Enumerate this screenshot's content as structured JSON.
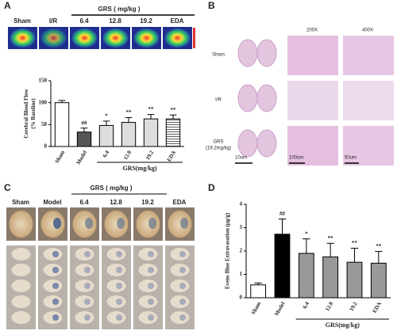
{
  "panel_labels": [
    "A",
    "B",
    "C",
    "D"
  ],
  "panel_a": {
    "group_label": "GRS ( mg/kg )",
    "image_labels": [
      "Sham",
      "I/R",
      "6.4",
      "12.8",
      "19.2",
      "EDA"
    ]
  },
  "panel_b": {
    "columns": [
      "200X",
      "400X"
    ],
    "rows": [
      [
        "Sham"
      ],
      [
        "I/R"
      ],
      [
        "GRS",
        "(19.2mg/kg)"
      ]
    ],
    "scale_labels": [
      "10um",
      "100um",
      "50um"
    ]
  },
  "panel_c": {
    "group_label": "GRS ( mg/kg )",
    "image_labels": [
      "Sham",
      "Model",
      "6.4",
      "12.8",
      "19.2",
      "EDA"
    ]
  },
  "chart_data": [
    {
      "type": "bar",
      "ylabel": [
        "Cerebral Blood Flow",
        "(% Baseline)"
      ],
      "xlabel": "GRS(mg/kg)",
      "categories": [
        "Sham",
        "Model",
        "6.4",
        "12.8",
        "19.2",
        "EDA"
      ],
      "values": [
        100,
        33,
        48,
        55,
        63,
        63
      ],
      "errors": [
        5,
        9,
        10,
        11,
        10,
        9
      ],
      "colors": [
        "#ffffff",
        "#555555",
        "#dddddd",
        "#dddddd",
        "#dddddd",
        "#ffffff"
      ],
      "hatch": [
        false,
        false,
        false,
        false,
        false,
        true
      ],
      "annotations": [
        null,
        "##",
        "*",
        "**",
        "**",
        "**"
      ],
      "ylim": [
        0,
        150
      ],
      "yticks": [
        0,
        50,
        100,
        150
      ]
    },
    {
      "type": "bar",
      "ylabel": [
        "Evens Blue Extravasation (μg/g)"
      ],
      "xlabel": "GRS(mg/kg)",
      "categories": [
        "Sham",
        "Model",
        "6.4",
        "12.8",
        "19.2",
        "EDA"
      ],
      "values": [
        0.55,
        2.72,
        1.9,
        1.75,
        1.52,
        1.48
      ],
      "errors": [
        0.08,
        0.65,
        0.62,
        0.58,
        0.6,
        0.5
      ],
      "colors": [
        "#ffffff",
        "#000000",
        "#999999",
        "#999999",
        "#999999",
        "#999999"
      ],
      "hatch": [
        false,
        false,
        false,
        false,
        false,
        false
      ],
      "annotations": [
        null,
        "##",
        "*",
        "**",
        "**",
        "**"
      ],
      "ylim": [
        0,
        4
      ],
      "yticks": [
        0,
        1,
        2,
        3,
        4
      ]
    }
  ]
}
